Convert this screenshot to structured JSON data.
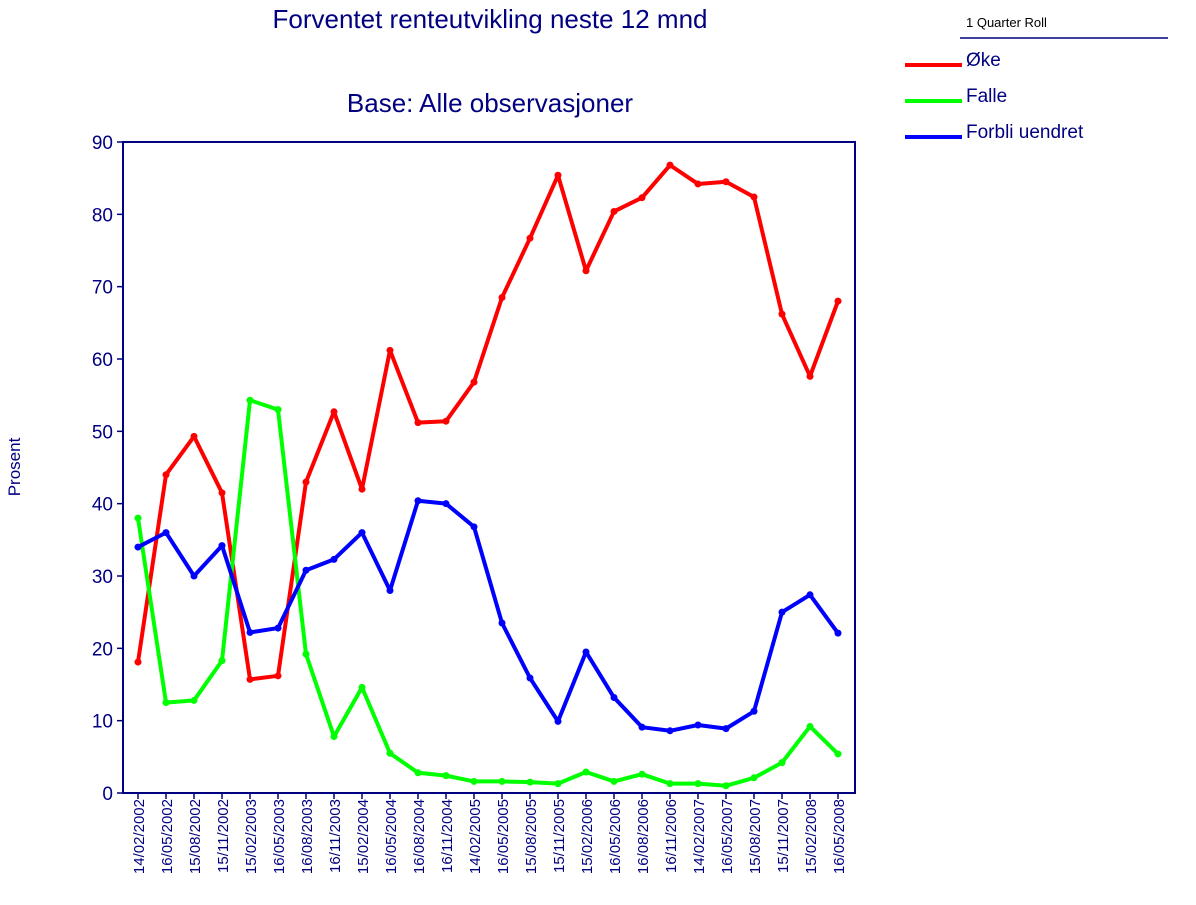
{
  "chart_data": {
    "type": "line",
    "title": "Forventet renteutvikling neste 12 mnd",
    "subtitle": "Base: Alle observasjoner",
    "y_label": "Prosent",
    "legend_title": "1 Quarter Roll",
    "categories": [
      "14/02/2002",
      "16/05/2002",
      "15/08/2002",
      "15/11/2002",
      "15/02/2003",
      "16/05/2003",
      "16/08/2003",
      "16/11/2003",
      "15/02/2004",
      "16/05/2004",
      "16/08/2004",
      "16/11/2004",
      "14/02/2005",
      "16/05/2005",
      "15/08/2005",
      "15/11/2005",
      "15/02/2006",
      "16/05/2006",
      "16/08/2006",
      "16/11/2006",
      "14/02/2007",
      "16/05/2007",
      "15/08/2007",
      "15/11/2007",
      "15/02/2008",
      "16/05/2008"
    ],
    "series": [
      {
        "name": "Øke",
        "color": "#ff0000",
        "values": [
          18.1,
          44,
          49.3,
          41.5,
          15.7,
          16.2,
          43,
          52.7,
          42,
          61.2,
          51.2,
          51.4,
          56.8,
          68.5,
          76.7,
          85.4,
          72.2,
          80.4,
          82.3,
          86.8,
          84.2,
          84.5,
          82.4,
          66.2,
          57.6,
          68
        ]
      },
      {
        "name": "Falle",
        "color": "#00ff00",
        "values": [
          38,
          12.5,
          12.8,
          18.3,
          54.3,
          53,
          19.2,
          7.8,
          14.6,
          5.5,
          2.8,
          2.4,
          1.6,
          1.6,
          1.5,
          1.3,
          2.9,
          1.6,
          2.6,
          1.3,
          1.3,
          1.0,
          2.1,
          4.2,
          9.2,
          5.4
        ]
      },
      {
        "name": "Forbli uendret",
        "color": "#0000ff",
        "values": [
          34,
          36,
          30,
          34.2,
          22.2,
          22.8,
          30.8,
          32.3,
          36,
          28,
          40.4,
          40,
          36.8,
          23.5,
          15.9,
          9.9,
          19.5,
          13.2,
          9.1,
          8.6,
          9.4,
          8.9,
          11.3,
          25,
          27.4,
          22.1
        ]
      }
    ],
    "ylim": [
      0,
      90
    ],
    "yticks": [
      0,
      10,
      20,
      30,
      40,
      50,
      60,
      70,
      80,
      90
    ]
  }
}
